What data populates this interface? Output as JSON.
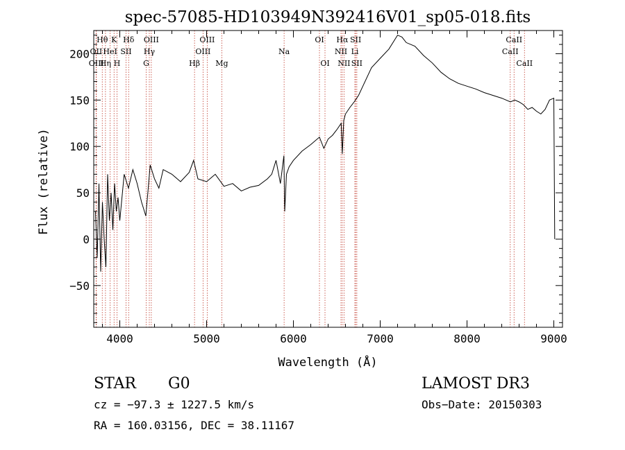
{
  "chart_data": {
    "type": "line",
    "title": "spec-57085-HD103949N392416V01_sp05-018.fits",
    "xlabel": "Wavelength (Å)",
    "ylabel": "Flux (relative)",
    "xlim": [
      3700,
      9100
    ],
    "ylim": [
      -95,
      225
    ],
    "xticks": [
      4000,
      5000,
      6000,
      7000,
      8000,
      9000
    ],
    "xtick_labels": [
      "4000",
      "5000",
      "6000",
      "7000",
      "8000",
      "9000"
    ],
    "yticks": [
      -50,
      0,
      50,
      100,
      150,
      200
    ],
    "ytick_labels": [
      "−50",
      "0",
      "50",
      "100",
      "150",
      "200"
    ],
    "series": [
      {
        "name": "flux",
        "x": [
          3720,
          3740,
          3760,
          3780,
          3800,
          3820,
          3840,
          3860,
          3880,
          3900,
          3920,
          3940,
          3960,
          3980,
          4000,
          4050,
          4100,
          4150,
          4200,
          4250,
          4300,
          4350,
          4400,
          4450,
          4500,
          4600,
          4700,
          4800,
          4850,
          4900,
          5000,
          5100,
          5200,
          5300,
          5400,
          5500,
          5600,
          5700,
          5750,
          5800,
          5850,
          5890,
          5900,
          5920,
          5950,
          6000,
          6100,
          6200,
          6300,
          6350,
          6400,
          6450,
          6500,
          6550,
          6563,
          6580,
          6600,
          6650,
          6700,
          6750,
          6800,
          6900,
          7000,
          7100,
          7200,
          7250,
          7300,
          7400,
          7500,
          7600,
          7700,
          7800,
          7900,
          8000,
          8100,
          8200,
          8300,
          8400,
          8500,
          8550,
          8600,
          8650,
          8700,
          8750,
          8800,
          8850,
          8900,
          8950,
          9000,
          9010
        ],
        "values": [
          30,
          -20,
          60,
          -35,
          40,
          0,
          -30,
          70,
          20,
          50,
          10,
          60,
          30,
          45,
          20,
          70,
          55,
          75,
          60,
          40,
          25,
          80,
          65,
          55,
          75,
          70,
          62,
          72,
          85,
          65,
          62,
          70,
          57,
          60,
          52,
          56,
          58,
          65,
          70,
          85,
          60,
          90,
          30,
          70,
          78,
          85,
          95,
          102,
          110,
          98,
          108,
          112,
          118,
          125,
          92,
          128,
          135,
          142,
          148,
          155,
          165,
          185,
          195,
          205,
          220,
          218,
          212,
          208,
          198,
          190,
          180,
          173,
          168,
          165,
          162,
          158,
          155,
          152,
          148,
          150,
          148,
          145,
          140,
          142,
          138,
          135,
          140,
          150,
          152,
          0
        ]
      }
    ],
    "lines": [
      {
        "name": "Hθ",
        "wave": 3798,
        "row": 1
      },
      {
        "name": "OII",
        "wave": 3727,
        "row": 2
      },
      {
        "name": "OIII",
        "wave": 3730,
        "row": 3
      },
      {
        "name": "K",
        "wave": 3934,
        "row": 1
      },
      {
        "name": "HeI",
        "wave": 3889,
        "row": 2
      },
      {
        "name": "Hη",
        "wave": 3835,
        "row": 3
      },
      {
        "name": "H",
        "wave": 3968,
        "row": 3
      },
      {
        "name": "Hδ",
        "wave": 4102,
        "row": 1
      },
      {
        "name": "SII",
        "wave": 4072,
        "row": 2
      },
      {
        "name": "OIII",
        "wave": 4363,
        "row": 1
      },
      {
        "name": "Hγ",
        "wave": 4340,
        "row": 2
      },
      {
        "name": "G",
        "wave": 4304,
        "row": 3
      },
      {
        "name": "OIII",
        "wave": 5007,
        "row": 1
      },
      {
        "name": "OIII",
        "wave": 4959,
        "row": 2
      },
      {
        "name": "Hβ",
        "wave": 4861,
        "row": 3
      },
      {
        "name": "Mg",
        "wave": 5175,
        "row": 3
      },
      {
        "name": "Na",
        "wave": 5893,
        "row": 2
      },
      {
        "name": "OI",
        "wave": 6300,
        "row": 1
      },
      {
        "name": "OI",
        "wave": 6364,
        "row": 3
      },
      {
        "name": "Hα",
        "wave": 6563,
        "row": 1
      },
      {
        "name": "NII",
        "wave": 6548,
        "row": 2
      },
      {
        "name": "NII",
        "wave": 6583,
        "row": 3
      },
      {
        "name": "SII",
        "wave": 6717,
        "row": 1
      },
      {
        "name": "Li",
        "wave": 6708,
        "row": 2
      },
      {
        "name": "SII",
        "wave": 6731,
        "row": 3
      },
      {
        "name": "CaII",
        "wave": 8542,
        "row": 1
      },
      {
        "name": "CaII",
        "wave": 8498,
        "row": 2
      },
      {
        "name": "CaII",
        "wave": 8662,
        "row": 3
      }
    ]
  },
  "footer": {
    "class_label": "STAR",
    "subclass": "G0",
    "survey": "LAMOST DR3",
    "cz": "cz = −97.3 ± 1227.5 km/s",
    "obs_date": "Obs−Date: 20150303",
    "radec": "RA = 160.03156, DEC =  38.11167"
  }
}
